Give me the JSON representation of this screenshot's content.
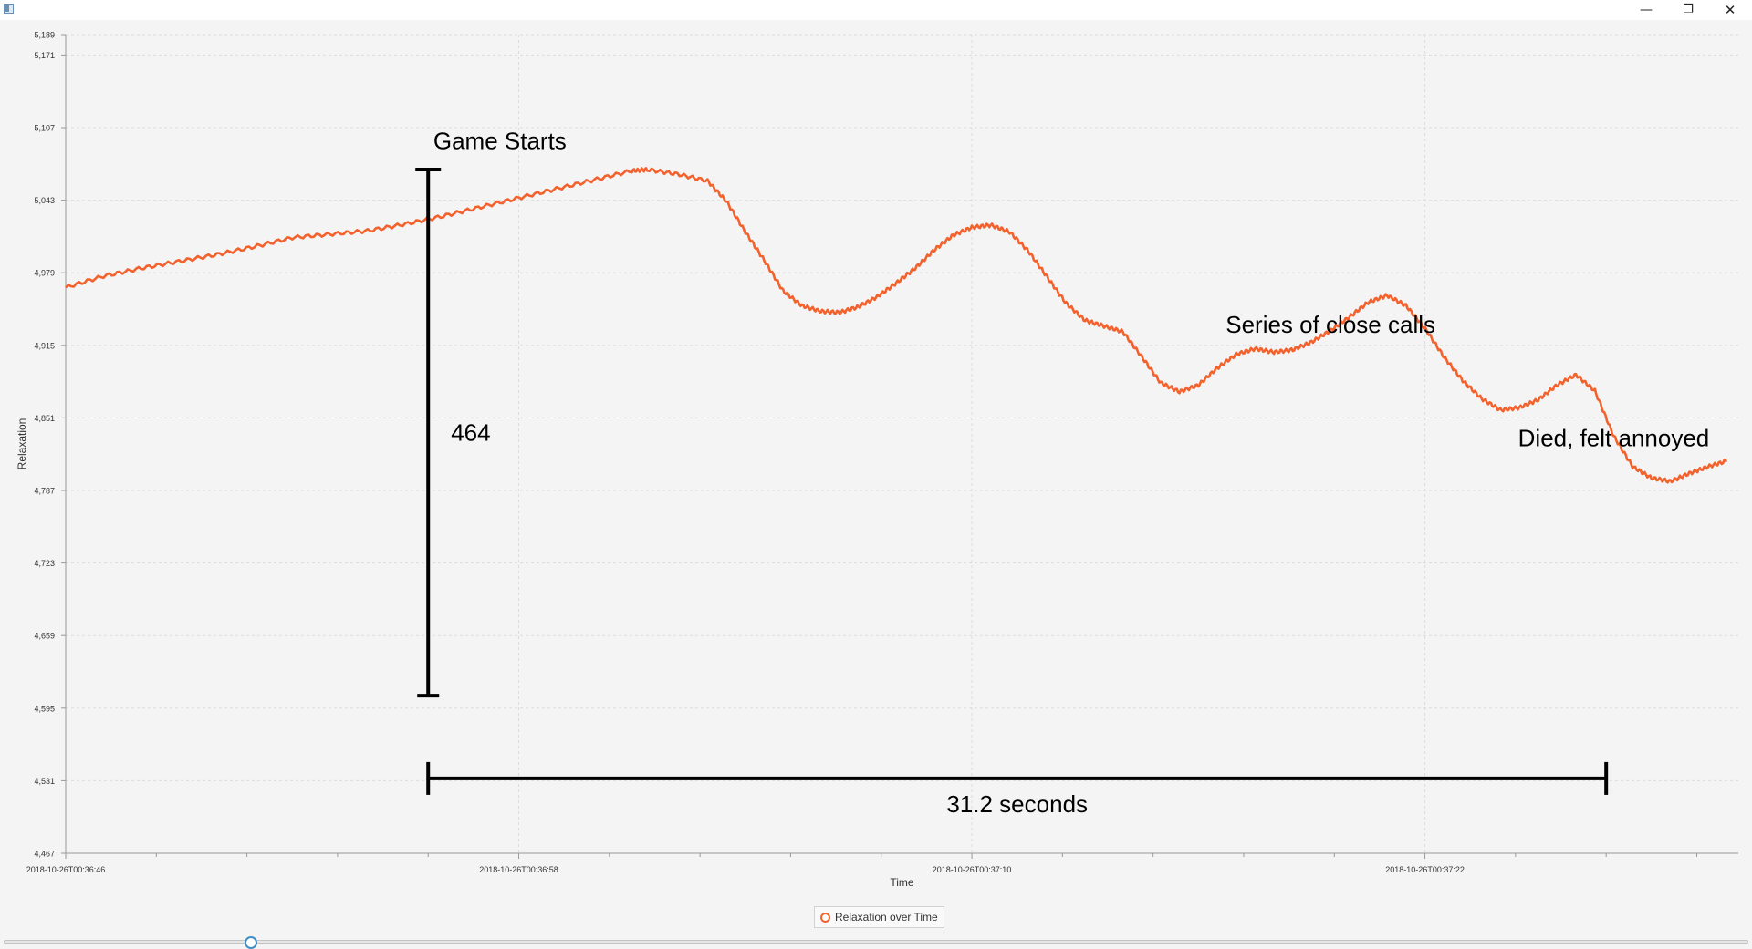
{
  "window": {
    "minimize_glyph": "—",
    "maximize_glyph": "❐",
    "close_glyph": "✕"
  },
  "chart_data": {
    "type": "line",
    "title": "",
    "xlabel": "Time",
    "ylabel": "Relaxation",
    "x_axis_mode": "datetime",
    "xlim": [
      "2018-10-26T00:36:46",
      "2018-10-26T00:37:30.300"
    ],
    "ylim": [
      4467,
      5189
    ],
    "x_tick_labels": [
      {
        "t": "2018-10-26T00:36:46",
        "label": "2018-10-26T00:36:46"
      },
      {
        "t": "2018-10-26T00:36:58",
        "label": "2018-10-26T00:36:58"
      },
      {
        "t": "2018-10-26T00:37:10",
        "label": "2018-10-26T00:37:10"
      },
      {
        "t": "2018-10-26T00:37:22",
        "label": "2018-10-26T00:37:22"
      }
    ],
    "minor_x_ticks": [
      "2018-10-26T00:36:48.400",
      "2018-10-26T00:36:50.800",
      "2018-10-26T00:36:53.200",
      "2018-10-26T00:36:55.600",
      "2018-10-26T00:37:00.400",
      "2018-10-26T00:37:02.800",
      "2018-10-26T00:37:05.200",
      "2018-10-26T00:37:07.600",
      "2018-10-26T00:37:12.400",
      "2018-10-26T00:37:14.800",
      "2018-10-26T00:37:17.200",
      "2018-10-26T00:37:19.600",
      "2018-10-26T00:37:24.400",
      "2018-10-26T00:37:26.800",
      "2018-10-26T00:37:29.200"
    ],
    "y_ticks": [
      4467,
      4531,
      4595,
      4659,
      4723,
      4787,
      4851,
      4915,
      4979,
      5043,
      5107,
      5171,
      5189
    ],
    "y_tick_labels": [
      "4,467",
      "4,531",
      "4,595",
      "4,659",
      "4,723",
      "4,787",
      "4,851",
      "4,915",
      "4,979",
      "5,043",
      "5,107",
      "5,171",
      "5,189"
    ],
    "grid": true,
    "legend_position": "bottom",
    "series": [
      {
        "name": "Relaxation over Time",
        "color": "#f3622d",
        "points": [
          [
            "2018-10-26T00:36:46.000",
            4966
          ],
          [
            "2018-10-26T00:36:47.000",
            4976
          ],
          [
            "2018-10-26T00:36:48.000",
            4983
          ],
          [
            "2018-10-26T00:36:49.000",
            4989
          ],
          [
            "2018-10-26T00:36:50.000",
            4995
          ],
          [
            "2018-10-26T00:36:51.000",
            5002
          ],
          [
            "2018-10-26T00:36:52.000",
            5010
          ],
          [
            "2018-10-26T00:36:53.000",
            5013
          ],
          [
            "2018-10-26T00:36:54.000",
            5016
          ],
          [
            "2018-10-26T00:36:55.000",
            5022
          ],
          [
            "2018-10-26T00:36:56.000",
            5029
          ],
          [
            "2018-10-26T00:36:57.000",
            5037
          ],
          [
            "2018-10-26T00:36:58.000",
            5045
          ],
          [
            "2018-10-26T00:36:59.000",
            5053
          ],
          [
            "2018-10-26T00:37:00.000",
            5061
          ],
          [
            "2018-10-26T00:37:01.000",
            5069
          ],
          [
            "2018-10-26T00:37:01.400",
            5070
          ],
          [
            "2018-10-26T00:37:02.200",
            5066
          ],
          [
            "2018-10-26T00:37:03.000",
            5060
          ],
          [
            "2018-10-26T00:37:03.500",
            5042
          ],
          [
            "2018-10-26T00:37:04.000",
            5015
          ],
          [
            "2018-10-26T00:37:04.500",
            4990
          ],
          [
            "2018-10-26T00:37:05.000",
            4963
          ],
          [
            "2018-10-26T00:37:05.500",
            4950
          ],
          [
            "2018-10-26T00:37:06.000",
            4945
          ],
          [
            "2018-10-26T00:37:06.500",
            4944
          ],
          [
            "2018-10-26T00:37:07.000",
            4949
          ],
          [
            "2018-10-26T00:37:07.500",
            4958
          ],
          [
            "2018-10-26T00:37:08.000",
            4970
          ],
          [
            "2018-10-26T00:37:08.500",
            4983
          ],
          [
            "2018-10-26T00:37:09.000",
            4999
          ],
          [
            "2018-10-26T00:37:09.500",
            5012
          ],
          [
            "2018-10-26T00:37:10.000",
            5019
          ],
          [
            "2018-10-26T00:37:10.500",
            5021
          ],
          [
            "2018-10-26T00:37:11.000",
            5015
          ],
          [
            "2018-10-26T00:37:11.500",
            4998
          ],
          [
            "2018-10-26T00:37:12.000",
            4975
          ],
          [
            "2018-10-26T00:37:12.500",
            4952
          ],
          [
            "2018-10-26T00:37:13.000",
            4937
          ],
          [
            "2018-10-26T00:37:13.500",
            4932
          ],
          [
            "2018-10-26T00:37:14.000",
            4927
          ],
          [
            "2018-10-26T00:37:14.500",
            4905
          ],
          [
            "2018-10-26T00:37:15.000",
            4882
          ],
          [
            "2018-10-26T00:37:15.500",
            4874
          ],
          [
            "2018-10-26T00:37:16.000",
            4880
          ],
          [
            "2018-10-26T00:37:16.500",
            4895
          ],
          [
            "2018-10-26T00:37:17.000",
            4907
          ],
          [
            "2018-10-26T00:37:17.500",
            4912
          ],
          [
            "2018-10-26T00:37:18.000",
            4909
          ],
          [
            "2018-10-26T00:37:18.500",
            4911
          ],
          [
            "2018-10-26T00:37:19.000",
            4918
          ],
          [
            "2018-10-26T00:37:19.500",
            4928
          ],
          [
            "2018-10-26T00:37:20.000",
            4940
          ],
          [
            "2018-10-26T00:37:20.500",
            4953
          ],
          [
            "2018-10-26T00:37:21.000",
            4959
          ],
          [
            "2018-10-26T00:37:21.500",
            4950
          ],
          [
            "2018-10-26T00:37:22.000",
            4930
          ],
          [
            "2018-10-26T00:37:22.500",
            4905
          ],
          [
            "2018-10-26T00:37:23.000",
            4884
          ],
          [
            "2018-10-26T00:37:23.500",
            4868
          ],
          [
            "2018-10-26T00:37:24.000",
            4858
          ],
          [
            "2018-10-26T00:37:24.500",
            4860
          ],
          [
            "2018-10-26T00:37:25.000",
            4867
          ],
          [
            "2018-10-26T00:37:25.500",
            4880
          ],
          [
            "2018-10-26T00:37:26.000",
            4889
          ],
          [
            "2018-10-26T00:37:26.500",
            4875
          ],
          [
            "2018-10-26T00:37:27.000",
            4835
          ],
          [
            "2018-10-26T00:37:27.500",
            4808
          ],
          [
            "2018-10-26T00:37:28.000",
            4798
          ],
          [
            "2018-10-26T00:37:28.500",
            4795
          ],
          [
            "2018-10-26T00:37:29.000",
            4802
          ],
          [
            "2018-10-26T00:37:29.500",
            4808
          ],
          [
            "2018-10-26T00:37:30.000",
            4813
          ]
        ]
      }
    ],
    "annotations": [
      {
        "text": "Game Starts",
        "kind": "label",
        "at": [
          "2018-10-26T00:36:57.500",
          5088
        ]
      },
      {
        "text": "464",
        "kind": "vertical-bracket",
        "from": [
          "2018-10-26T00:36:55.600",
          5070
        ],
        "to": [
          "2018-10-26T00:36:55.600",
          4606
        ]
      },
      {
        "text": "31.2 seconds",
        "kind": "horizontal-bracket",
        "from": [
          "2018-10-26T00:36:55.600",
          4533
        ],
        "to": [
          "2018-10-26T00:37:26.800",
          4533
        ]
      },
      {
        "text": "Series of close calls",
        "kind": "label",
        "at": [
          "2018-10-26T00:37:19.500",
          4926
        ]
      },
      {
        "text": "Died, felt annoyed",
        "kind": "label",
        "at": [
          "2018-10-26T00:37:27.000",
          4826
        ]
      }
    ]
  }
}
